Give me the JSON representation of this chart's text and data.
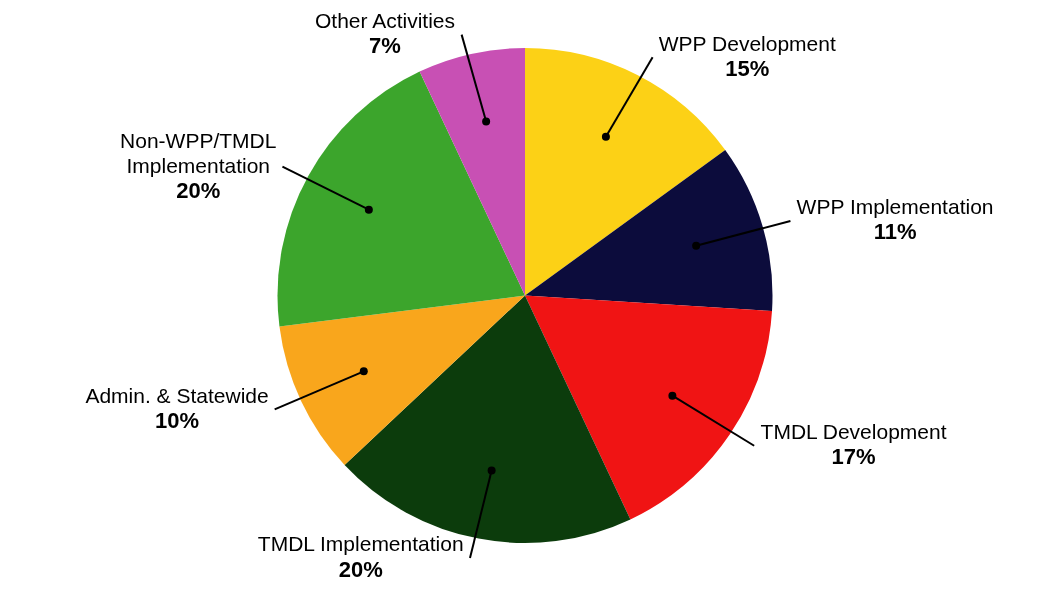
{
  "chart_data": {
    "type": "pie",
    "categories": [
      "WPP Development",
      "WPP Implementation",
      "TMDL Development",
      "TMDL Implementation",
      "Admin. & Statewide",
      "Non-WPP/TMDL Implementation",
      "Other Activities"
    ],
    "values": [
      15,
      11,
      17,
      20,
      10,
      20,
      7
    ],
    "colors": [
      "#fcd116",
      "#0c0c3c",
      "#f01414",
      "#0c3c0c",
      "#f9a61c",
      "#3ca52c",
      "#c850b4"
    ],
    "value_labels": [
      "15%",
      "11%",
      "17%",
      "20%",
      "10%",
      "20%",
      "7%"
    ],
    "legend": false
  }
}
